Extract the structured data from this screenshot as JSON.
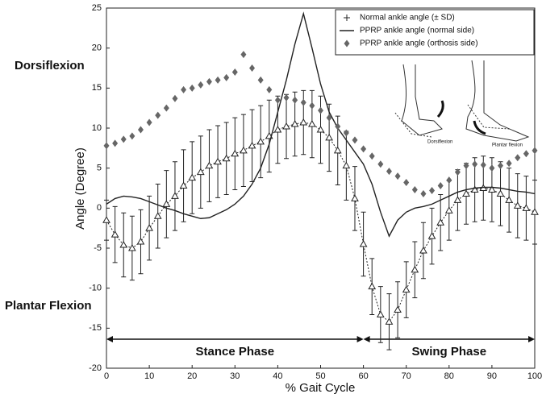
{
  "chart_data": {
    "type": "line",
    "xlabel": "% Gait Cycle",
    "ylabel": "Angle (Degree)",
    "annotations": {
      "dorsiflexion": "Dorsiflexion",
      "plantar_flexion": "Plantar Flexion",
      "inset_dorsiflexion": "Dorsiflexion",
      "inset_plantar": "Plantar flexion"
    },
    "phases": [
      {
        "label": "Stance Phase",
        "start": 0,
        "end": 60
      },
      {
        "label": "Swing Phase",
        "start": 60,
        "end": 100
      }
    ],
    "xlim": [
      0,
      100
    ],
    "ylim": [
      -20,
      25
    ],
    "xticks": [
      0,
      10,
      20,
      30,
      40,
      50,
      60,
      70,
      80,
      90,
      100
    ],
    "yticks": [
      -20,
      -15,
      -10,
      -5,
      0,
      5,
      10,
      15,
      20,
      25
    ],
    "grid": false,
    "legend": "upper right",
    "x": [
      0,
      2,
      4,
      6,
      8,
      10,
      12,
      14,
      16,
      18,
      20,
      22,
      24,
      26,
      28,
      30,
      32,
      34,
      36,
      38,
      40,
      42,
      44,
      46,
      48,
      50,
      52,
      54,
      56,
      58,
      60,
      62,
      64,
      66,
      68,
      70,
      72,
      74,
      76,
      78,
      80,
      82,
      84,
      86,
      88,
      90,
      92,
      94,
      96,
      98,
      100
    ],
    "series": [
      {
        "name": "Normal ankle angle (± SD)",
        "color": "#222222",
        "values": [
          -1.5,
          -3.3,
          -4.6,
          -5,
          -4.2,
          -2.5,
          -1,
          0.5,
          1.5,
          2.8,
          3.8,
          4.5,
          5.3,
          5.8,
          6.2,
          6.8,
          7.2,
          7.8,
          8.3,
          9,
          9.8,
          10.2,
          10.5,
          10.7,
          10.5,
          9.8,
          8.8,
          7.2,
          5.3,
          1.2,
          -4.5,
          -9.8,
          -13.3,
          -14.2,
          -12.7,
          -10.2,
          -7.7,
          -5.3,
          -3.5,
          -1.8,
          -0.3,
          1,
          1.8,
          2.3,
          2.5,
          2.3,
          1.8,
          1,
          0.3,
          0,
          -0.5
        ],
        "errors": [
          2.5,
          3.5,
          4,
          4,
          4,
          4,
          4,
          4.2,
          4.3,
          4.5,
          4.5,
          4.5,
          4.5,
          4.5,
          4.5,
          4.5,
          4.5,
          4.5,
          4.5,
          4.5,
          4.2,
          4,
          4,
          4,
          4.2,
          4.2,
          4.2,
          4.3,
          4.3,
          4,
          4,
          3.5,
          3.5,
          3.5,
          3.5,
          3.5,
          3.5,
          3.5,
          3.5,
          3.5,
          3.7,
          3.8,
          3.8,
          4,
          4,
          4,
          4,
          4,
          4,
          4,
          4
        ]
      },
      {
        "name": "PPRP ankle angle (normal side)",
        "color": "#222222",
        "values": [
          0.5,
          1.2,
          1.5,
          1.4,
          1.2,
          0.8,
          0.4,
          0,
          -0.3,
          -0.7,
          -1,
          -1.3,
          -1.2,
          -0.7,
          -0.2,
          0.5,
          1.5,
          3,
          5,
          8,
          12,
          16,
          20.5,
          24.3,
          20,
          15.5,
          12,
          10,
          8.5,
          7,
          5.5,
          3,
          -0.5,
          -3.5,
          -1.5,
          -0.5,
          0,
          0.2,
          0.5,
          1,
          1.5,
          2,
          2.3,
          2.5,
          2.6,
          2.6,
          2.5,
          2.3,
          2.1,
          2,
          1.8
        ]
      },
      {
        "name": "PPRP ankle angle (orthosis side)",
        "color": "#666666",
        "values": [
          7.8,
          8.1,
          8.6,
          9,
          9.8,
          10.7,
          11.6,
          12.5,
          13.7,
          14.8,
          15,
          15.4,
          15.8,
          16,
          16.3,
          17,
          19.2,
          17.5,
          16,
          14.8,
          13.5,
          13.8,
          13.5,
          13.2,
          12.8,
          12.2,
          11.3,
          10.2,
          9.4,
          8.5,
          7.4,
          6.5,
          5.5,
          4.6,
          4,
          3.2,
          2.3,
          1.8,
          2.2,
          2.8,
          3.5,
          4.5,
          5.3,
          5.5,
          5.4,
          5,
          5.3,
          5.6,
          6.3,
          6.8,
          7.2
        ]
      }
    ]
  }
}
